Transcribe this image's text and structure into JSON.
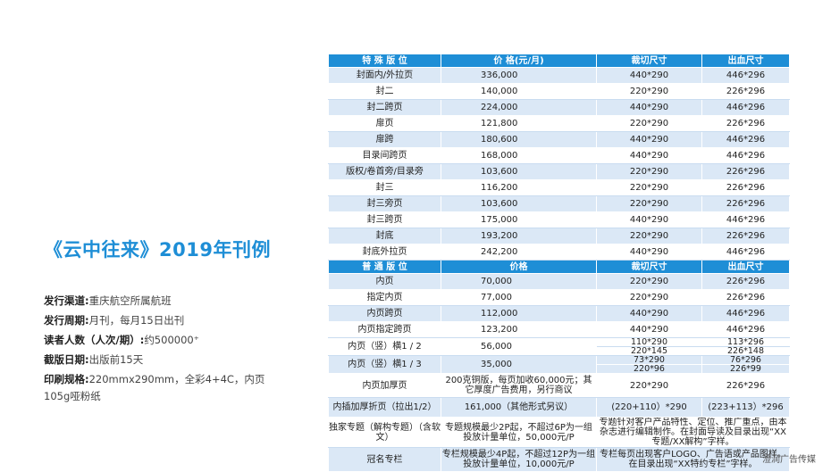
{
  "title": "《云中往来》2019年刊例",
  "info": [
    {
      "label": "发行渠道:",
      "value": "重庆航空所属航班"
    },
    {
      "label": "发行周期:",
      "value": "月刊，每月15日出刊"
    },
    {
      "label": "读者人数（人次/期）:",
      "value": "约500000⁺"
    },
    {
      "label": "截版日期:",
      "value": "出版前15天"
    },
    {
      "label": "印刷规格:",
      "value": "220mmx290mm，全彩4+4C，内页105g哑粉纸"
    }
  ],
  "special": {
    "headers": [
      "特 殊 版 位",
      "价 格(元/月)",
      "裁切尺寸",
      "出血尺寸"
    ],
    "rows": [
      [
        "封面内/外拉页",
        "336,000",
        "440*290",
        "446*296"
      ],
      [
        "封二",
        "140,000",
        "220*290",
        "226*296"
      ],
      [
        "封二跨页",
        "224,000",
        "440*290",
        "446*296"
      ],
      [
        "扉页",
        "121,800",
        "220*290",
        "226*296"
      ],
      [
        "扉跨",
        "180,600",
        "440*290",
        "446*296"
      ],
      [
        "目录间跨页",
        "168,000",
        "440*290",
        "446*296"
      ],
      [
        "版权/卷首旁/目录旁",
        "103,600",
        "220*290",
        "226*296"
      ],
      [
        "封三",
        "116,200",
        "220*290",
        "226*296"
      ],
      [
        "封三旁页",
        "103,600",
        "220*290",
        "226*296"
      ],
      [
        "封三跨页",
        "175,000",
        "440*290",
        "446*296"
      ],
      [
        "封底",
        "193,200",
        "220*290",
        "226*296"
      ],
      [
        "封底外拉页",
        "242,200",
        "440*290",
        "446*296"
      ]
    ]
  },
  "normal": {
    "headers": [
      "普 通 版 位",
      "价格",
      "裁切尺寸",
      "出血尺寸"
    ],
    "rows": [
      [
        "内页",
        "70,000",
        "220*290",
        "226*296"
      ],
      [
        "指定内页",
        "77,000",
        "220*290",
        "226*296"
      ],
      [
        "内页跨页",
        "112,000",
        "440*290",
        "446*296"
      ],
      [
        "内页指定跨页",
        "123,200",
        "440*290",
        "446*296"
      ]
    ],
    "half": {
      "name": "内页（竖）横1 / 2",
      "price": "56,000",
      "trim": [
        "110*290",
        "220*145"
      ],
      "bleed": [
        "113*296",
        "226*148"
      ]
    },
    "third": {
      "name": "内页（竖）横1 / 3",
      "price": "35,000",
      "trim": [
        "73*290",
        "220*96"
      ],
      "bleed": [
        "76*296",
        "226*99"
      ]
    },
    "thick": {
      "name": "内页加厚页",
      "price": "200克铜版，每页加收60,000元；其它厚度广告费用，另行商议",
      "trim": "220*290",
      "bleed": "226*296"
    },
    "foldout": {
      "name": "内插加厚折页（拉出1/2）",
      "price": "161,000（其他形式另议）",
      "trim": "(220+110）*290",
      "bleed": "(223+113）*296"
    },
    "topic": {
      "name": "独家专题（解构专题）（含软文）",
      "price": "专题规模最少2P起，不超过6P为一组投放计量单位，50,000元/P",
      "desc": "专题针对客户产品特性、定位、推广重点，由本杂志进行编辑制作。在封面导读及目录出现“XX专题/XX解构”字样。"
    },
    "column": {
      "name": "冠名专栏",
      "price": "专栏规模最少4P起，不超过12P为一组投放计量单位，10,000元/P",
      "desc": "专栏每页出现客户LOGO、广告语或产品图样。在目录出现“XX特约专栏”字样。"
    }
  },
  "watermark": "澄润广告传媒"
}
